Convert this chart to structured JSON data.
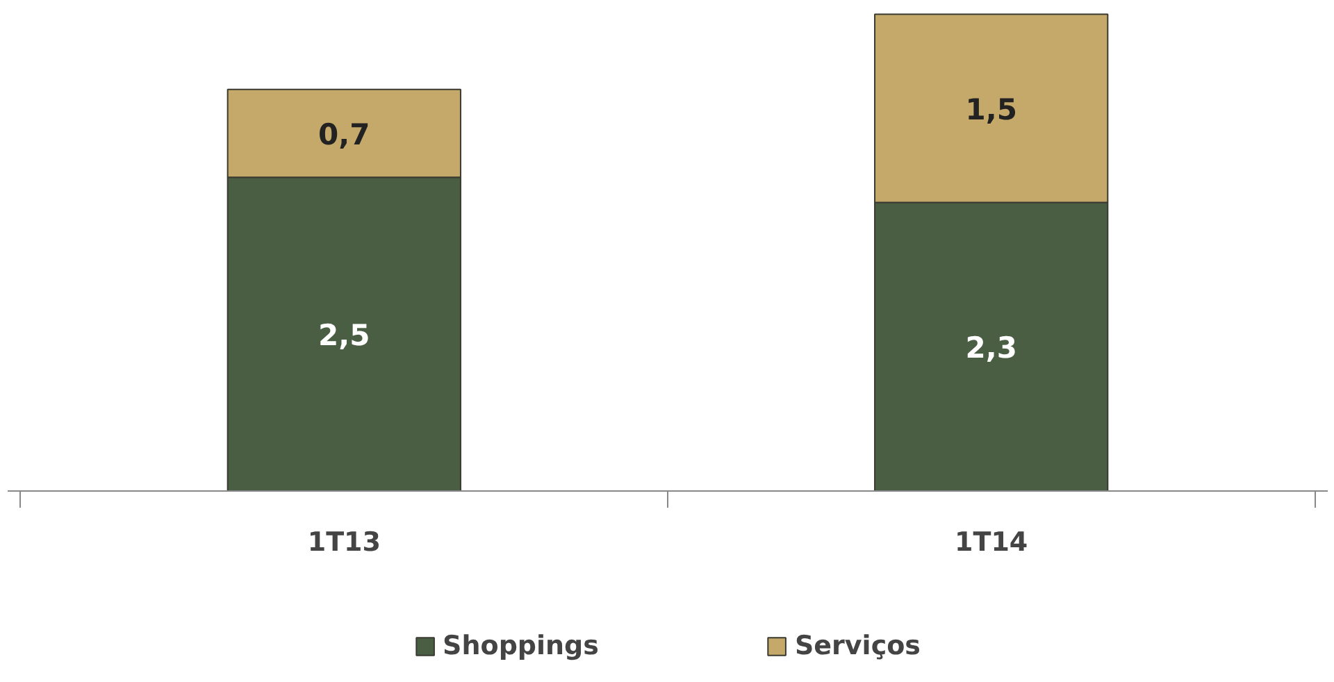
{
  "chart_data": {
    "type": "bar",
    "stacked": true,
    "categories": [
      "1T13",
      "1T14"
    ],
    "legend": "bottom",
    "series": [
      {
        "name": "Shoppings",
        "color": "#4a5e44",
        "values": [
          2.5,
          2.3
        ],
        "value_labels": [
          "2,5",
          "2,3"
        ]
      },
      {
        "name": "Serviços",
        "color": "#c4a96a",
        "values": [
          0.7,
          1.5
        ],
        "value_labels": [
          "0,7",
          "1,5"
        ]
      }
    ]
  }
}
